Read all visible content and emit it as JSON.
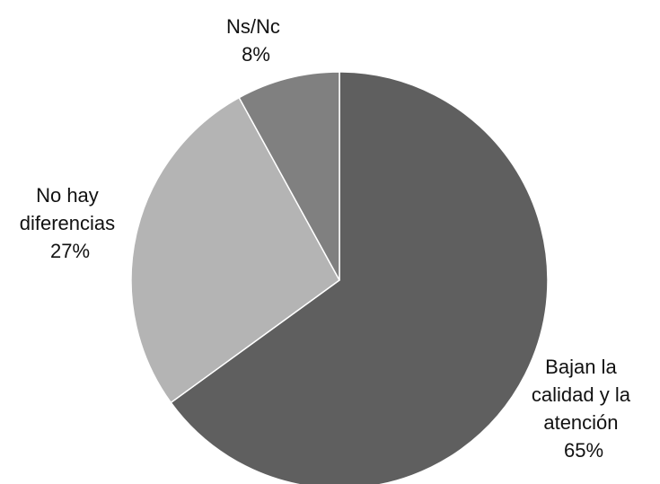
{
  "chart_data": {
    "type": "pie",
    "title": "",
    "slices": [
      {
        "label_lines": [
          "Bajan la",
          "calidad y la",
          "atención"
        ],
        "percent_label": "65%",
        "value": 65,
        "color": "#5f5f5f"
      },
      {
        "label_lines": [
          "No hay",
          "diferencias"
        ],
        "percent_label": "27%",
        "value": 27,
        "color": "#b4b4b4"
      },
      {
        "label_lines": [
          "Ns/Nc"
        ],
        "percent_label": "8%",
        "value": 8,
        "color": "#808080"
      }
    ],
    "start": "12 o'clock",
    "direction": "clockwise",
    "legend": "none",
    "slice_border_color": "#ffffff"
  }
}
